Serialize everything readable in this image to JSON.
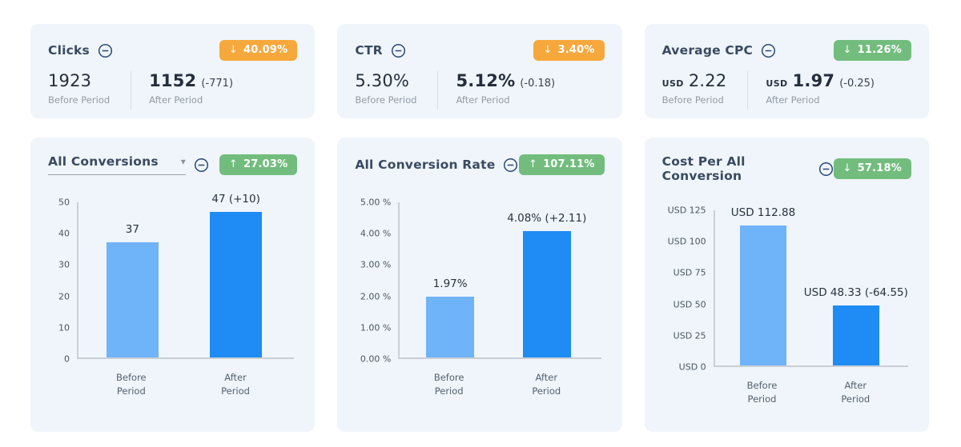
{
  "page": {
    "background": "#ffffff",
    "card_background": "#EFF5FA"
  },
  "colors": {
    "badge_orange": "#F6A83C",
    "badge_green": "#72BD7D",
    "bar_before": "#6FB3F8",
    "bar_after": "#1F8BF4",
    "title_text": "#3A4A61",
    "axis_line": "#C9CFD6"
  },
  "kpi_cards": [
    {
      "title": "Clicks",
      "badge": {
        "direction": "down",
        "arrow": "↓",
        "value": "40.09%",
        "background": "#F6A83C"
      },
      "before": {
        "currency": "",
        "value": "1923",
        "delta": "",
        "label": "Before Period"
      },
      "after": {
        "currency": "",
        "value": "1152",
        "delta": "(-771)",
        "label": "After Period"
      }
    },
    {
      "title": "CTR",
      "badge": {
        "direction": "down",
        "arrow": "↓",
        "value": "3.40%",
        "background": "#F6A83C"
      },
      "before": {
        "currency": "",
        "value": "5.30%",
        "delta": "",
        "label": "Before Period"
      },
      "after": {
        "currency": "",
        "value": "5.12%",
        "delta": "(-0.18)",
        "label": "After Period"
      }
    },
    {
      "title": "Average CPC",
      "badge": {
        "direction": "down",
        "arrow": "↓",
        "value": "11.26%",
        "background": "#72BD7D"
      },
      "before": {
        "currency": "USD",
        "value": "2.22",
        "delta": "",
        "label": "Before Period"
      },
      "after": {
        "currency": "USD",
        "value": "1.97",
        "delta": "(-0.25)",
        "label": "After Period"
      }
    }
  ],
  "chart_cards": [
    {
      "title": "All Conversions",
      "has_dropdown": true,
      "badge": {
        "direction": "up",
        "arrow": "↑",
        "value": "27.03%",
        "background": "#72BD7D"
      }
    },
    {
      "title": "All Conversion Rate",
      "has_dropdown": false,
      "badge": {
        "direction": "up",
        "arrow": "↑",
        "value": "107.11%",
        "background": "#72BD7D"
      }
    },
    {
      "title": "Cost Per All Conversion",
      "has_dropdown": false,
      "badge": {
        "direction": "down",
        "arrow": "↓",
        "value": "57.18%",
        "background": "#72BD7D"
      }
    }
  ],
  "chart_data": [
    {
      "type": "bar",
      "title": "All Conversions",
      "categories": [
        "Before Period",
        "After Period"
      ],
      "values": [
        37,
        47
      ],
      "bar_labels": [
        "37",
        "47 (+10)"
      ],
      "ylim": [
        0,
        50
      ],
      "yticks": [
        {
          "value": 0,
          "label": "0"
        },
        {
          "value": 10,
          "label": "10"
        },
        {
          "value": 20,
          "label": "20"
        },
        {
          "value": 30,
          "label": "30"
        },
        {
          "value": 40,
          "label": "40"
        },
        {
          "value": 50,
          "label": "50"
        }
      ],
      "series_colors": [
        "#6FB3F8",
        "#1F8BF4"
      ],
      "grid": false,
      "legend": "none",
      "yaxis_width": 36
    },
    {
      "type": "bar",
      "title": "All Conversion Rate",
      "categories": [
        "Before Period",
        "After Period"
      ],
      "values": [
        1.97,
        4.08
      ],
      "bar_labels": [
        "1.97%",
        "4.08% (+2.11)"
      ],
      "ylim": [
        0,
        5
      ],
      "yticks": [
        {
          "value": 0,
          "label": "0.00 %"
        },
        {
          "value": 1,
          "label": "1.00 %"
        },
        {
          "value": 2,
          "label": "2.00 %"
        },
        {
          "value": 3,
          "label": "3.00 %"
        },
        {
          "value": 4,
          "label": "4.00 %"
        },
        {
          "value": 5,
          "label": "5.00 %"
        }
      ],
      "series_colors": [
        "#6FB3F8",
        "#1F8BF4"
      ],
      "grid": false,
      "legend": "none",
      "yaxis_width": 54
    },
    {
      "type": "bar",
      "title": "Cost Per All Conversion",
      "categories": [
        "Before Period",
        "After Period"
      ],
      "values": [
        112.88,
        48.33
      ],
      "bar_labels": [
        "USD 112.88",
        "USD 48.33 (-64.55)"
      ],
      "ylim": [
        0,
        125
      ],
      "yticks": [
        {
          "value": 0,
          "label": "USD 0"
        },
        {
          "value": 25,
          "label": "USD 25"
        },
        {
          "value": 50,
          "label": "USD 50"
        },
        {
          "value": 75,
          "label": "USD 75"
        },
        {
          "value": 100,
          "label": "USD 100"
        },
        {
          "value": 125,
          "label": "USD 125"
        }
      ],
      "series_colors": [
        "#6FB3F8",
        "#1F8BF4"
      ],
      "grid": false,
      "legend": "none",
      "yaxis_width": 64
    }
  ]
}
